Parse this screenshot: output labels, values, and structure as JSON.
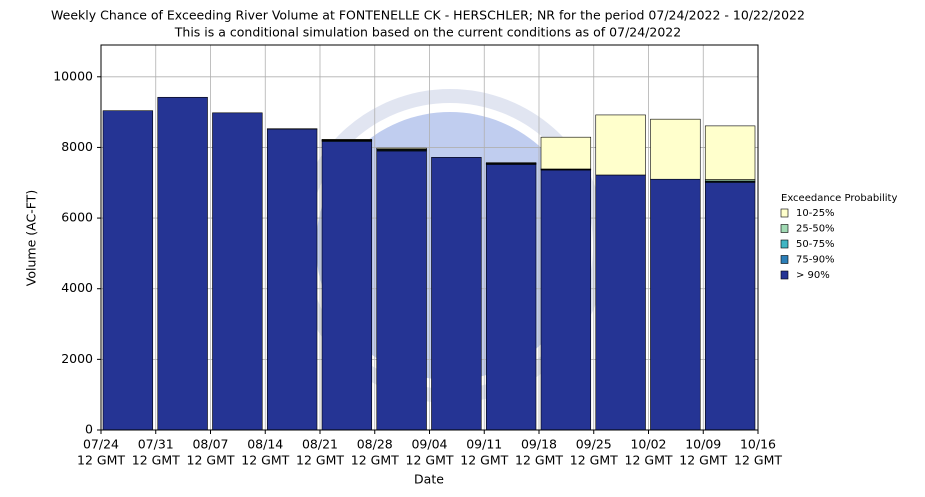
{
  "chart_data": {
    "type": "stacked_bar",
    "title": "Weekly Chance of Exceeding River Volume at FONTENELLE CK - HERSCHLER; NR for the period 07/24/2022 - 10/22/2022",
    "subtitle": "This is a conditional simulation based on the current conditions as of 07/24/2022",
    "xlabel": "Date",
    "ylabel": "Volume (AC-FT)",
    "legend_title": "Exceedance Probability",
    "legend": "right",
    "grid": true,
    "ylim": [
      0,
      10900
    ],
    "yticks": [
      0,
      2000,
      4000,
      6000,
      8000,
      10000
    ],
    "xtick_dates": [
      "07/24",
      "07/31",
      "08/07",
      "08/14",
      "08/21",
      "08/28",
      "09/04",
      "09/11",
      "09/18",
      "09/25",
      "10/02",
      "10/09",
      "10/16"
    ],
    "xtick_time": "12 GMT",
    "series": [
      {
        "name": "> 90%",
        "color": "#253494",
        "values": [
          9040,
          9420,
          8980,
          8520,
          8170,
          7900,
          7720,
          7520,
          7360,
          7220,
          7100,
          7010
        ]
      },
      {
        "name": "75-90%",
        "color": "#2c7fb8",
        "values": [
          0,
          0,
          0,
          0,
          20,
          20,
          0,
          10,
          10,
          0,
          0,
          20
        ]
      },
      {
        "name": "50-75%",
        "color": "#41b6c4",
        "values": [
          0,
          0,
          0,
          0,
          10,
          20,
          0,
          10,
          10,
          0,
          0,
          20
        ]
      },
      {
        "name": "25-50%",
        "color": "#a1dab4",
        "values": [
          0,
          0,
          0,
          0,
          10,
          10,
          0,
          10,
          10,
          0,
          0,
          40
        ]
      },
      {
        "name": "10-25%",
        "color": "#ffffcc",
        "values": [
          0,
          0,
          0,
          10,
          20,
          30,
          0,
          20,
          900,
          1700,
          1700,
          1520
        ]
      }
    ]
  }
}
